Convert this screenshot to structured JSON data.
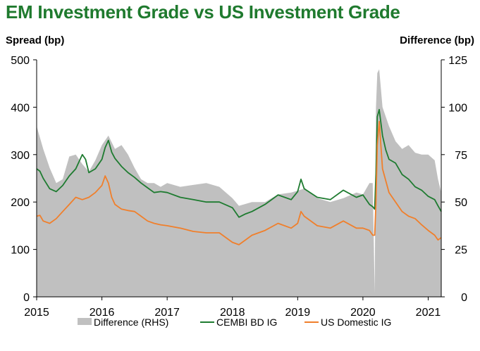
{
  "colors": {
    "title": "#1f7a2e",
    "difference": "#c0c0c0",
    "cembi": "#1e7b30",
    "us_ig": "#f07f2b"
  },
  "chart_data": {
    "type": "line",
    "title": "EM Investment Grade vs US Investment Grade",
    "ylabel_left": "Spread (bp)",
    "ylabel_right": "Difference (bp)",
    "x_ticks": [
      "2015",
      "2016",
      "2017",
      "2018",
      "2019",
      "2020",
      "2021"
    ],
    "xlim": [
      2015.0,
      2021.2
    ],
    "ylim_left": [
      0,
      500
    ],
    "yticks_left": [
      "0",
      "100",
      "200",
      "300",
      "400",
      "500"
    ],
    "ylim_right": [
      0,
      125
    ],
    "yticks_right": [
      "0",
      "25",
      "50",
      "75",
      "100",
      "125"
    ],
    "legend_position": "bottom",
    "legend": [
      "Difference (RHS)",
      "CEMBI BD IG",
      "US Domestic IG"
    ],
    "series": [
      {
        "name": "Difference (RHS)",
        "axis": "right",
        "type": "area",
        "x": [
          2015.0,
          2015.1,
          2015.2,
          2015.3,
          2015.4,
          2015.5,
          2015.6,
          2015.7,
          2015.8,
          2015.9,
          2016.0,
          2016.1,
          2016.2,
          2016.3,
          2016.4,
          2016.5,
          2016.6,
          2016.7,
          2016.8,
          2016.9,
          2017.0,
          2017.2,
          2017.4,
          2017.6,
          2017.8,
          2018.0,
          2018.1,
          2018.3,
          2018.5,
          2018.7,
          2018.9,
          2019.0,
          2019.1,
          2019.3,
          2019.5,
          2019.7,
          2019.9,
          2020.0,
          2020.1,
          2020.15,
          2020.18,
          2020.2,
          2020.22,
          2020.25,
          2020.3,
          2020.4,
          2020.5,
          2020.6,
          2020.7,
          2020.8,
          2020.9,
          2021.0,
          2021.1,
          2021.15,
          2021.2
        ],
        "values": [
          90,
          78,
          68,
          60,
          62,
          74,
          75,
          70,
          66,
          72,
          80,
          85,
          78,
          80,
          75,
          68,
          62,
          60,
          60,
          58,
          60,
          58,
          59,
          60,
          58,
          52,
          48,
          50,
          50,
          54,
          55,
          56,
          57,
          52,
          50,
          52,
          55,
          54,
          60,
          60,
          2,
          100,
          118,
          120,
          100,
          90,
          82,
          78,
          80,
          76,
          75,
          75,
          72,
          62,
          55
        ]
      },
      {
        "name": "CEMBI BD IG",
        "axis": "left",
        "type": "line",
        "x": [
          2015.0,
          2015.05,
          2015.1,
          2015.2,
          2015.3,
          2015.4,
          2015.5,
          2015.6,
          2015.7,
          2015.75,
          2015.8,
          2015.9,
          2016.0,
          2016.05,
          2016.1,
          2016.15,
          2016.2,
          2016.3,
          2016.4,
          2016.5,
          2016.6,
          2016.7,
          2016.8,
          2016.9,
          2017.0,
          2017.2,
          2017.4,
          2017.6,
          2017.8,
          2018.0,
          2018.1,
          2018.2,
          2018.3,
          2018.5,
          2018.7,
          2018.9,
          2019.0,
          2019.05,
          2019.1,
          2019.3,
          2019.5,
          2019.7,
          2019.9,
          2020.0,
          2020.1,
          2020.15,
          2020.18,
          2020.2,
          2020.22,
          2020.25,
          2020.3,
          2020.35,
          2020.4,
          2020.5,
          2020.6,
          2020.7,
          2020.8,
          2020.9,
          2021.0,
          2021.1,
          2021.15,
          2021.2
        ],
        "values": [
          270,
          265,
          250,
          228,
          222,
          235,
          255,
          270,
          300,
          290,
          262,
          270,
          290,
          315,
          330,
          305,
          292,
          275,
          262,
          252,
          240,
          230,
          220,
          222,
          220,
          210,
          205,
          200,
          200,
          188,
          168,
          175,
          180,
          195,
          215,
          205,
          222,
          248,
          228,
          210,
          205,
          225,
          210,
          215,
          195,
          190,
          185,
          260,
          380,
          395,
          340,
          310,
          290,
          282,
          258,
          248,
          232,
          225,
          212,
          205,
          192,
          180
        ]
      },
      {
        "name": "US Domestic IG",
        "axis": "left",
        "type": "line",
        "x": [
          2015.0,
          2015.05,
          2015.1,
          2015.2,
          2015.3,
          2015.4,
          2015.5,
          2015.6,
          2015.7,
          2015.8,
          2015.9,
          2016.0,
          2016.05,
          2016.1,
          2016.15,
          2016.2,
          2016.3,
          2016.4,
          2016.5,
          2016.6,
          2016.7,
          2016.8,
          2016.9,
          2017.0,
          2017.2,
          2017.4,
          2017.6,
          2017.8,
          2018.0,
          2018.1,
          2018.2,
          2018.3,
          2018.5,
          2018.7,
          2018.9,
          2019.0,
          2019.05,
          2019.1,
          2019.3,
          2019.5,
          2019.7,
          2019.9,
          2020.0,
          2020.1,
          2020.15,
          2020.18,
          2020.2,
          2020.22,
          2020.25,
          2020.3,
          2020.35,
          2020.4,
          2020.5,
          2020.6,
          2020.7,
          2020.8,
          2020.9,
          2021.0,
          2021.1,
          2021.15,
          2021.2
        ],
        "values": [
          170,
          172,
          160,
          155,
          165,
          180,
          195,
          210,
          205,
          210,
          220,
          235,
          255,
          240,
          210,
          195,
          185,
          182,
          180,
          170,
          160,
          155,
          152,
          150,
          145,
          138,
          135,
          135,
          115,
          110,
          120,
          130,
          140,
          155,
          145,
          155,
          180,
          170,
          150,
          145,
          160,
          145,
          145,
          140,
          130,
          130,
          200,
          320,
          370,
          270,
          245,
          220,
          200,
          180,
          170,
          165,
          152,
          140,
          130,
          120,
          125
        ]
      }
    ]
  }
}
